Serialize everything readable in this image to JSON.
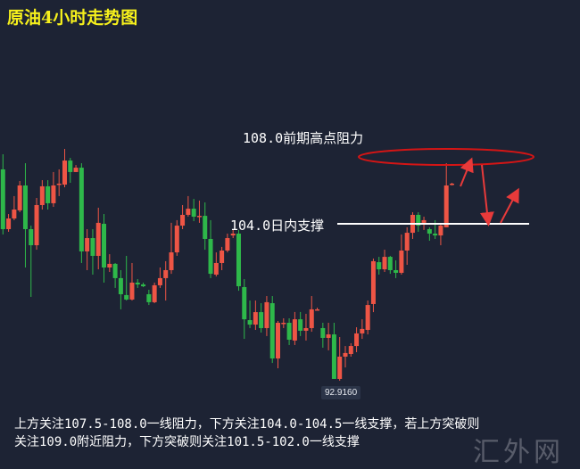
{
  "title": "原油4小时走势图",
  "annotations": {
    "resistance_label": "108.0前期高点阻力",
    "support_label": "104.0日内支撑",
    "low_tag": "92.9160",
    "watermark": "汇外网"
  },
  "note": {
    "line1": "上方关注107.5-108.0一线阻力，下方关注104.0-104.5一线支撑，若上方突破则",
    "line2": "关注109.0附近阻力，下方突破则关注101.5-102.0一线支撑"
  },
  "colors": {
    "up": "#ee5545",
    "down": "#2eb84a",
    "background": "#1d2334",
    "title": "#f6f01c",
    "ellipse": "#d41515",
    "support_line": "#ffffff"
  },
  "chart_data": {
    "type": "candlestick",
    "title": "原油4小时走势图",
    "support_level": 104.0,
    "resistance_level": 108.0,
    "marked_low": 92.916,
    "ohlc": [
      [
        107.89,
        108.97,
        103.24,
        103.62
      ],
      [
        103.62,
        104.7,
        103.43,
        104.38
      ],
      [
        104.38,
        105.98,
        104.26,
        105.02
      ],
      [
        104.96,
        107.06,
        104.83,
        106.74
      ],
      [
        106.74,
        108.33,
        100.88,
        103.62
      ],
      [
        103.62,
        103.87,
        98.78,
        102.47
      ],
      [
        102.47,
        105.85,
        102.15,
        105.34
      ],
      [
        105.34,
        107.12,
        105.02,
        106.68
      ],
      [
        106.68,
        107.12,
        105.02,
        105.47
      ],
      [
        105.47,
        107.7,
        105.21,
        106.74
      ],
      [
        106.8,
        107.89,
        105.98,
        106.87
      ],
      [
        106.8,
        109.35,
        106.61,
        108.52
      ],
      [
        108.52,
        108.71,
        106.93,
        107.7
      ],
      [
        107.7,
        108.2,
        107.7,
        108.01
      ],
      [
        108.01,
        108.33,
        101.2,
        102.03
      ],
      [
        102.03,
        103.62,
        100.69,
        102.98
      ],
      [
        102.98,
        103.62,
        100.37,
        101.71
      ],
      [
        101.71,
        105.15,
        100.75,
        104.07
      ],
      [
        104.0,
        104.7,
        99.8,
        100.88
      ],
      [
        100.88,
        101.83,
        100.56,
        101.14
      ],
      [
        101.14,
        101.2,
        99.42,
        100.12
      ],
      [
        100.12,
        100.69,
        97.89,
        98.97
      ],
      [
        98.91,
        101.71,
        98.52,
        98.59
      ],
      [
        98.59,
        101.2,
        98.52,
        99.8
      ],
      [
        99.8,
        100.05,
        99.42,
        99.67
      ],
      [
        99.67,
        99.8,
        99.48,
        99.54
      ],
      [
        98.97,
        99.29,
        98.2,
        98.4
      ],
      [
        98.4,
        99.8,
        98.33,
        99.61
      ],
      [
        99.61,
        100.88,
        99.42,
        100.12
      ],
      [
        100.12,
        101.33,
        98.52,
        100.69
      ],
      [
        100.69,
        104.07,
        100.43,
        101.96
      ],
      [
        101.96,
        104.26,
        101.71,
        103.87
      ],
      [
        103.87,
        105.34,
        103.62,
        104.64
      ],
      [
        104.64,
        105.98,
        104.51,
        105.08
      ],
      [
        105.08,
        105.78,
        104.19,
        104.51
      ],
      [
        104.51,
        105.66,
        104.07,
        104.57
      ],
      [
        104.57,
        105.53,
        102.15,
        102.92
      ],
      [
        102.92,
        104.26,
        100.12,
        100.43
      ],
      [
        100.37,
        101.96,
        100.24,
        101.2
      ],
      [
        101.2,
        102.35,
        100.69,
        102.09
      ],
      [
        102.09,
        103.3,
        101.96,
        102.98
      ],
      [
        103.17,
        103.62,
        102.98,
        103.3
      ],
      [
        103.3,
        103.56,
        99.22,
        99.54
      ],
      [
        99.48,
        100.05,
        95.78,
        97.18
      ],
      [
        97.12,
        98.52,
        96.55,
        96.8
      ],
      [
        96.8,
        98.52,
        96.42,
        97.69
      ],
      [
        97.69,
        98.33,
        96.23,
        96.55
      ],
      [
        96.55,
        98.84,
        95.98,
        98.4
      ],
      [
        98.33,
        98.84,
        94.06,
        94.38
      ],
      [
        94.38,
        97.06,
        93.68,
        96.93
      ],
      [
        96.93,
        97.25,
        96.55,
        96.93
      ],
      [
        96.93,
        97.25,
        95.34,
        95.72
      ],
      [
        95.66,
        97.7,
        95.34,
        97.18
      ],
      [
        97.18,
        97.7,
        95.98,
        96.36
      ],
      [
        96.36,
        97.57,
        95.66,
        96.55
      ],
      [
        96.55,
        98.84,
        96.29,
        97.89
      ],
      [
        97.89,
        98.01,
        97.82,
        97.89
      ],
      [
        96.55,
        96.93,
        95.15,
        95.85
      ],
      [
        95.85,
        96.93,
        94.96,
        96.1
      ],
      [
        96.1,
        96.93,
        92.92,
        92.92
      ],
      [
        92.92,
        95.91,
        92.79,
        94.51
      ],
      [
        94.51,
        95.27,
        93.74,
        94.77
      ],
      [
        94.7,
        95.47,
        94.51,
        95.27
      ],
      [
        95.27,
        96.61,
        94.83,
        96.17
      ],
      [
        96.17,
        97.18,
        95.78,
        96.49
      ],
      [
        96.42,
        98.52,
        96.1,
        98.2
      ],
      [
        98.27,
        101.52,
        97.69,
        101.33
      ],
      [
        101.26,
        101.64,
        100.37,
        100.75
      ],
      [
        100.75,
        102.15,
        100.56,
        101.64
      ],
      [
        101.64,
        101.71,
        100.43,
        100.69
      ],
      [
        100.69,
        101.39,
        100.12,
        100.5
      ],
      [
        100.5,
        103.24,
        100.37,
        102.09
      ],
      [
        102.09,
        103.75,
        101.07,
        103.36
      ],
      [
        103.36,
        104.83,
        102.92,
        104.64
      ],
      [
        104.64,
        104.83,
        103.43,
        103.87
      ],
      [
        104.07,
        104.51,
        103.56,
        104.26
      ],
      [
        103.62,
        103.75,
        102.79,
        103.3
      ],
      [
        103.3,
        104.26,
        102.92,
        103.17
      ],
      [
        103.17,
        104.07,
        102.47,
        103.87
      ],
      [
        103.75,
        108.33,
        103.75,
        106.74
      ],
      [
        106.8,
        106.93,
        106.74,
        106.87
      ]
    ]
  }
}
